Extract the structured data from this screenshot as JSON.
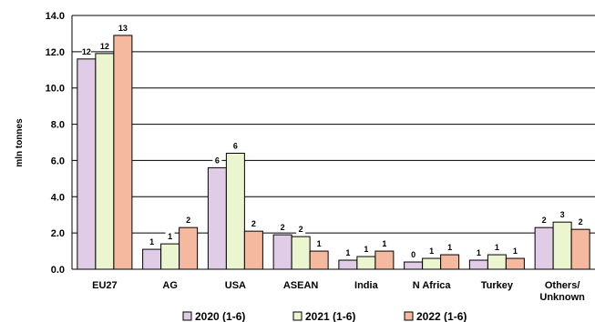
{
  "chart_data": {
    "type": "bar",
    "title": "",
    "ylabel": "mln tonnes",
    "xlabel": "",
    "ylim": [
      0,
      14
    ],
    "yticks": [
      "0.0",
      "2.0",
      "4.0",
      "6.0",
      "8.0",
      "10.0",
      "12.0",
      "14.0"
    ],
    "grid": true,
    "legend_position": "bottom",
    "categories": [
      "EU27",
      "AG",
      "USA",
      "ASEAN",
      "India",
      "N Africa",
      "Turkey",
      "Others/\nUnknown"
    ],
    "series": [
      {
        "name": "2020 (1-6)",
        "color": "#e0cce6",
        "values": [
          11.6,
          1.1,
          5.6,
          1.9,
          0.5,
          0.4,
          0.5,
          2.3
        ],
        "labels": [
          "12",
          "1",
          "6",
          "2",
          "1",
          "0",
          "1",
          "2"
        ]
      },
      {
        "name": "2021 (1-6)",
        "color": "#ebf5cf",
        "values": [
          11.9,
          1.4,
          6.4,
          1.8,
          0.7,
          0.6,
          0.8,
          2.6
        ],
        "labels": [
          "12",
          "1",
          "6",
          "2",
          "1",
          "1",
          "1",
          "3"
        ]
      },
      {
        "name": "2022 (1-6)",
        "color": "#f5b9a0",
        "values": [
          12.9,
          2.3,
          2.1,
          1.0,
          1.0,
          0.8,
          0.6,
          2.2
        ],
        "labels": [
          "13",
          "2",
          "2",
          "1",
          "1",
          "1",
          "1",
          "2"
        ]
      }
    ]
  }
}
